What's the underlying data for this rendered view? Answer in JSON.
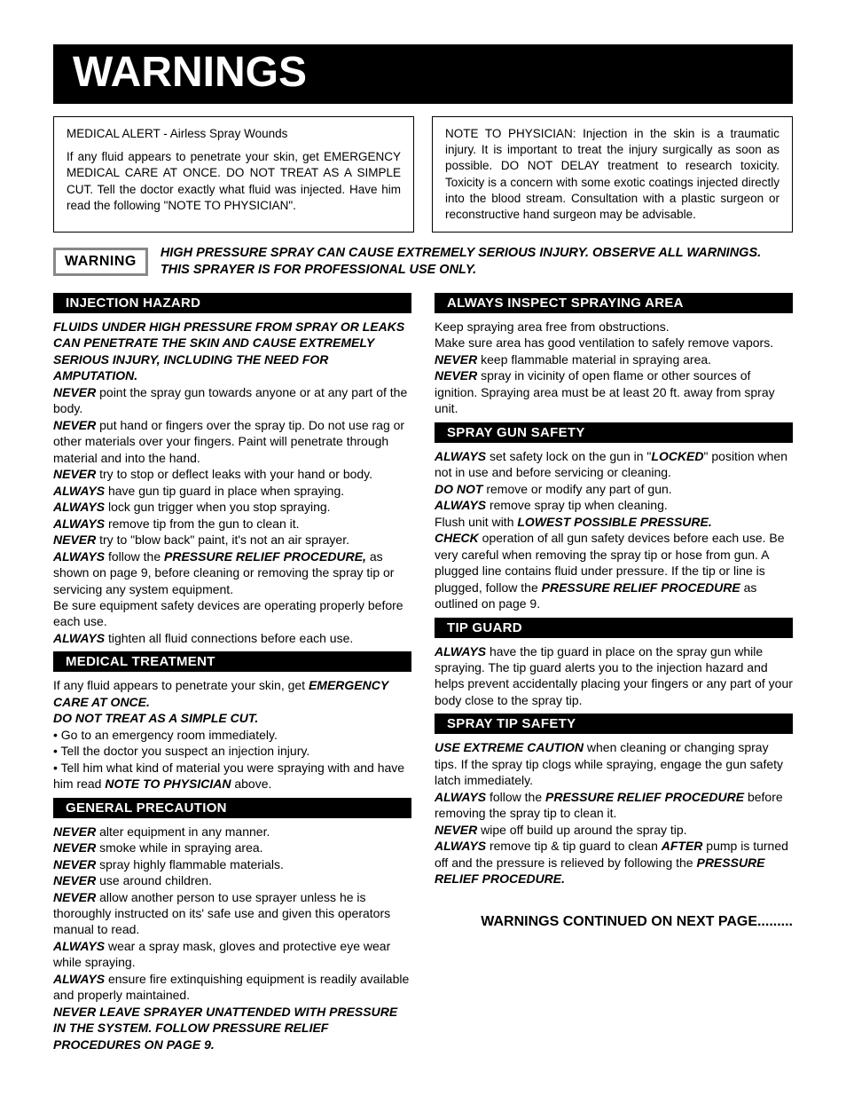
{
  "title": "WARNINGS",
  "alert_left": {
    "heading": "MEDICAL ALERT - Airless Spray Wounds",
    "body": "If any fluid appears to penetrate your skin, get EMERGENCY MEDICAL CARE AT ONCE. DO NOT TREAT AS A SIMPLE CUT. Tell the doctor exactly what fluid was injected.  Have him read the following \"NOTE TO PHYSICIAN\"."
  },
  "alert_right": {
    "body": "NOTE TO PHYSICIAN: Injection in the skin is a traumatic injury. It is important to treat the injury surgically as soon as possible. DO NOT DELAY treatment to research toxicity. Toxicity is a concern with some exotic coatings injected directly into the blood stream. Consultation with a plastic surgeon or reconstructive hand surgeon may be advisable."
  },
  "warning_badge": "WARNING",
  "warning_headline": "HIGH PRESSURE SPRAY CAN CAUSE EXTREMELY SERIOUS INJURY. OBSERVE ALL WARNINGS. THIS SPRAYER IS FOR PROFESSIONAL USE ONLY.",
  "left_col": {
    "injection": {
      "header": "INJECTION HAZARD",
      "intro": "FLUIDS UNDER HIGH PRESSURE FROM SPRAY OR LEAKS CAN PENETRATE THE SKIN AND CAUSE EXTREMELY SERIOUS INJURY, INCLUDING THE NEED FOR AMPUTATION.",
      "p1a": "NEVER",
      "p1b": " point the spray gun towards anyone or at any part of the body.",
      "p2a": "NEVER",
      "p2b": " put hand or fingers over the spray tip. Do not use rag or other materials over your fingers. Paint will penetrate through material and into the hand.",
      "p3a": "NEVER",
      "p3b": " try to stop or deflect leaks with your hand or body.",
      "p4a": "ALWAYS",
      "p4b": " have gun tip guard in place when spraying.",
      "p5a": "ALWAYS",
      "p5b": " lock gun trigger when you stop spraying.",
      "p6a": "ALWAYS",
      "p6b": " remove tip from the gun to clean it.",
      "p7a": "NEVER",
      "p7b": " try to \"blow back\" paint, it's not an air sprayer.",
      "p8a": "ALWAYS",
      "p8b": " follow the ",
      "p8c": "PRESSURE RELIEF PROCEDURE,",
      "p8d": " as shown on page 9, before cleaning or removing the spray tip or servicing any system equipment.",
      "p9": "Be sure equipment safety devices are operating properly before each use.",
      "p10a": "ALWAYS",
      "p10b": " tighten all fluid connections before each use."
    },
    "medical": {
      "header": "MEDICAL TREATMENT",
      "p1a": "If any fluid appears to penetrate your skin, get ",
      "p1b": "EMERGENCY CARE AT ONCE.",
      "p2": "DO NOT TREAT AS A SIMPLE CUT.",
      "b1": "• Go to an emergency room immediately.",
      "b2": "• Tell the doctor you suspect an injection injury.",
      "b3a": "• Tell him what kind of material you were spraying with and have him read ",
      "b3b": "NOTE TO PHYSICIAN",
      "b3c": " above."
    },
    "general": {
      "header": "GENERAL PRECAUTION",
      "p1a": "NEVER",
      "p1b": " alter equipment in any manner.",
      "p2a": "NEVER",
      "p2b": " smoke while in spraying area.",
      "p3a": "NEVER",
      "p3b": " spray highly flammable materials.",
      "p4a": "NEVER",
      "p4b": " use around children.",
      "p5a": "NEVER",
      "p5b": " allow another person to use sprayer unless he is thoroughly instructed on its' safe use and given this operators manual to read.",
      "p6a": "ALWAYS",
      "p6b": " wear a spray mask, gloves and protective eye wear  while spraying.",
      "p7a": "ALWAYS",
      "p7b": " ensure fire extinquishing equipment is readily available and properly maintained.",
      "p8": "NEVER LEAVE SPRAYER UNATTENDED WITH PRESSURE IN THE SYSTEM. FOLLOW PRESSURE RELIEF PROCEDURES ON PAGE 9."
    }
  },
  "right_col": {
    "inspect": {
      "header": "ALWAYS INSPECT SPRAYING AREA",
      "p1": "Keep spraying area free from obstructions.",
      "p2a": "Make sure area has good ventilation to safely remove vapors. ",
      "p2b": "NEVER",
      "p2c": " keep flammable material in spraying area.",
      "p3a": "NEVER",
      "p3b": " spray in vicinity of open flame or other sources of ignition. Spraying area must be at least 20 ft. away from spray unit."
    },
    "gun": {
      "header": "SPRAY GUN SAFETY",
      "p1a": "ALWAYS",
      "p1b": " set safety lock on the gun in \"",
      "p1c": "LOCKED",
      "p1d": "\" position when not in use and before servicing or cleaning.",
      "p2a": "DO NOT",
      "p2b": " remove or modify any part of gun.",
      "p3a": "ALWAYS",
      "p3b": " remove spray tip when cleaning.",
      "p4a": "Flush unit with ",
      "p4b": "LOWEST POSSIBLE PRESSURE.",
      "p5a": "CHECK",
      "p5b": " operation of all gun safety devices before each use. Be very careful when removing the spray tip or hose from gun. A plugged line contains fluid under pressure. If the tip or line is plugged, follow the ",
      "p5c": "PRESSURE RELIEF PROCEDURE",
      "p5d": " as outlined on page 9."
    },
    "tipguard": {
      "header": "TIP GUARD",
      "p1a": "ALWAYS",
      "p1b": " have the tip guard in place on the spray gun while spraying. The tip guard alerts you to the injection hazard and helps prevent accidentally placing your fingers or any part of your body close to the spray tip."
    },
    "tipsafety": {
      "header": "SPRAY TIP SAFETY",
      "p1a": "USE EXTREME CAUTION",
      "p1b": " when cleaning or changing spray tips. If the spray tip clogs while spraying, engage the gun safety latch immediately.",
      "p2a": "ALWAYS",
      "p2b": " follow the ",
      "p2c": "PRESSURE RELIEF PROCEDURE",
      "p2d": " before removing  the spray tip to clean it.",
      "p3a": "NEVER",
      "p3b": " wipe off build up around the spray tip.",
      "p4a": "ALWAYS",
      "p4b": " remove tip & tip guard to clean ",
      "p4c": "AFTER",
      "p4d": " pump is turned off and the pressure is relieved by following the ",
      "p4e": "PRESSURE RELIEF PROCEDURE."
    }
  },
  "footer": "WARNINGS CONTINUED ON NEXT PAGE........."
}
